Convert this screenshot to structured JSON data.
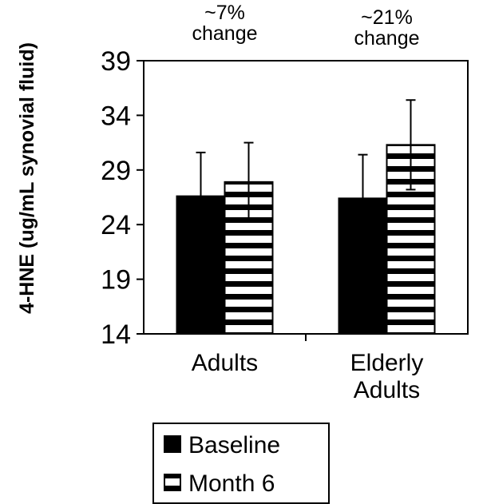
{
  "chart_data": {
    "type": "bar",
    "title": "",
    "xlabel": "",
    "ylabel": "4-HNE (ug/mL synovial fluid)",
    "ylim": [
      14,
      39
    ],
    "yticks": [
      14,
      19,
      24,
      29,
      34,
      39
    ],
    "grid": false,
    "categories": [
      {
        "lines": [
          "Adults"
        ]
      },
      {
        "lines": [
          "Elderly",
          "Adults"
        ]
      }
    ],
    "series": [
      {
        "name": "Baseline",
        "fill": "solid",
        "color": "#000000",
        "values": [
          26.6,
          26.4
        ],
        "error_upper": [
          4.0,
          4.0
        ]
      },
      {
        "name": "Month 6",
        "fill": "horizontal-stripes",
        "color": "#000000",
        "values": [
          27.9,
          31.3
        ],
        "error_upper": [
          3.6,
          4.1
        ],
        "error_lower": [
          3.6,
          4.1
        ]
      }
    ],
    "annotations": [
      {
        "lines": [
          "~7%",
          "change"
        ],
        "category": 0
      },
      {
        "lines": [
          "~21%",
          "change"
        ],
        "category": 1
      }
    ],
    "legend": {
      "placement": "bottom"
    }
  }
}
